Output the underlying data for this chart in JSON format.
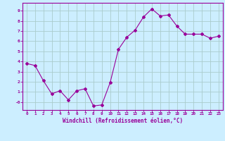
{
  "x": [
    0,
    1,
    2,
    3,
    4,
    5,
    6,
    7,
    8,
    9,
    10,
    11,
    12,
    13,
    14,
    15,
    16,
    17,
    18,
    19,
    20,
    21,
    22,
    23
  ],
  "y": [
    3.8,
    3.6,
    2.1,
    0.8,
    1.1,
    0.2,
    1.1,
    1.3,
    -0.4,
    -0.3,
    1.9,
    5.2,
    6.4,
    7.1,
    8.4,
    9.2,
    8.5,
    8.6,
    7.5,
    6.7,
    6.7,
    6.7,
    6.3,
    6.5
  ],
  "line_color": "#990099",
  "marker": "D",
  "marker_size": 2,
  "bg_color": "#cceeff",
  "grid_color": "#aacccc",
  "title": "",
  "xlabel": "Windchill (Refroidissement éolien,°C)",
  "ylabel": "",
  "xlim": [
    -0.5,
    23.5
  ],
  "ylim": [
    -0.8,
    9.8
  ],
  "yticks": [
    0,
    1,
    2,
    3,
    4,
    5,
    6,
    7,
    8,
    9
  ],
  "ytick_labels": [
    "-0",
    "1",
    "2",
    "3",
    "4",
    "5",
    "6",
    "7",
    "8",
    "9"
  ],
  "xticks": [
    0,
    1,
    2,
    3,
    4,
    5,
    6,
    7,
    8,
    9,
    10,
    11,
    12,
    13,
    14,
    15,
    16,
    17,
    18,
    19,
    20,
    21,
    22,
    23
  ],
  "tick_color": "#990099",
  "label_color": "#990099",
  "spine_color": "#990099"
}
